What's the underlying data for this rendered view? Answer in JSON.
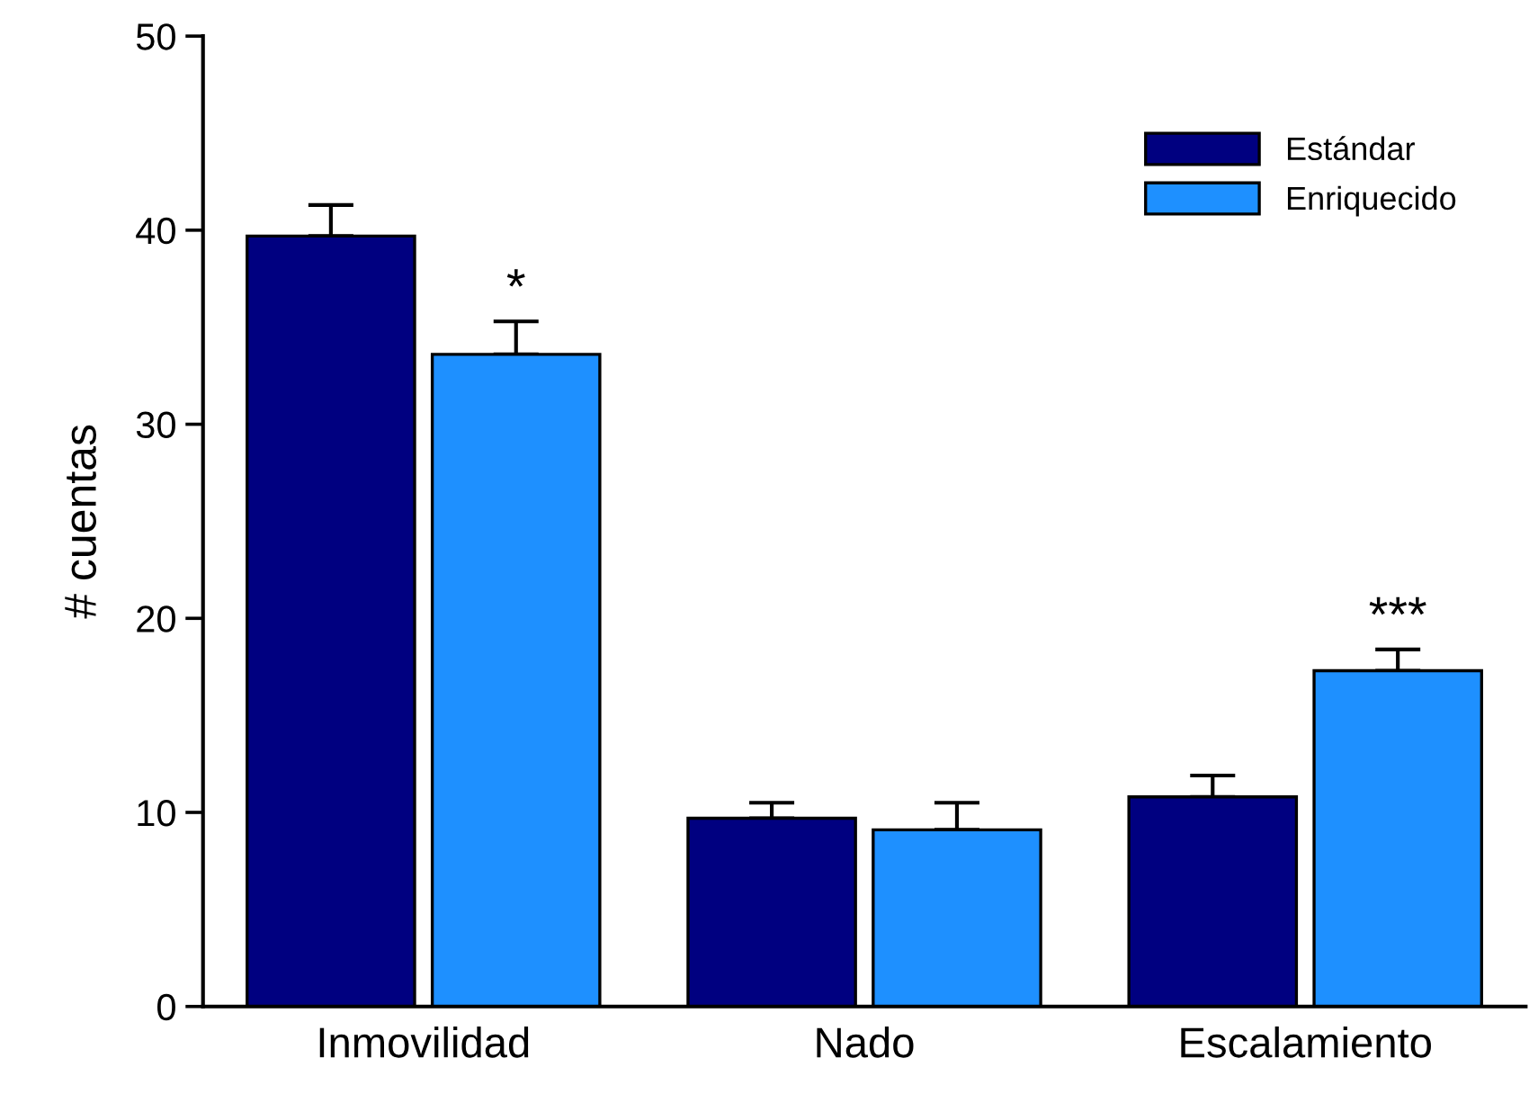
{
  "chart_data": {
    "type": "bar",
    "ylabel": "# cuentas",
    "categories": [
      "Inmovilidad",
      "Nado",
      "Escalamiento"
    ],
    "series": [
      {
        "name": "Estándar",
        "color": "#000080",
        "values": [
          39.7,
          9.7,
          10.8
        ],
        "errors": [
          [
            39.7,
            41.3
          ],
          [
            9.7,
            10.5
          ],
          [
            10.8,
            11.9
          ]
        ]
      },
      {
        "name": "Enriquecido",
        "color": "#1e90ff",
        "values": [
          33.6,
          9.1,
          17.3
        ],
        "errors": [
          [
            33.6,
            35.3
          ],
          [
            9.1,
            10.5
          ],
          [
            17.3,
            18.4
          ]
        ]
      }
    ],
    "ylim": [
      0,
      50
    ],
    "yticks": [
      0,
      10,
      20,
      30,
      40,
      50
    ],
    "grid": false,
    "legend": "top right",
    "annotations": [
      "*",
      "***"
    ]
  }
}
